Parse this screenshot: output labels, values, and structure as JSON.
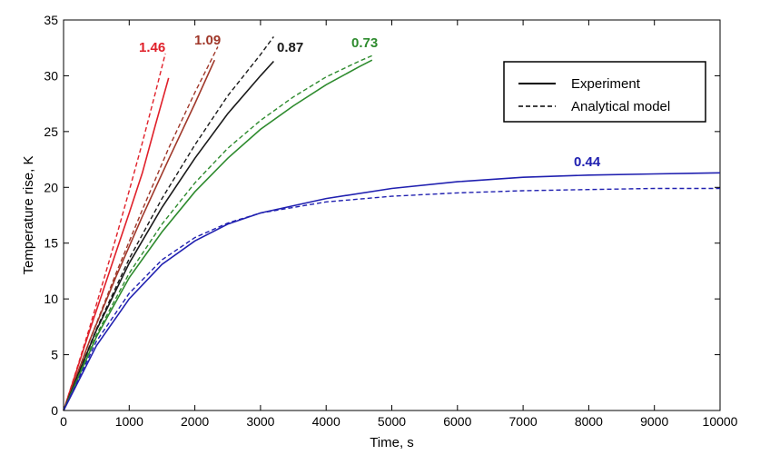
{
  "chart_data": {
    "type": "line",
    "xlabel": "Time, s",
    "ylabel": "Temperature rise, K",
    "xlim": [
      0,
      10000
    ],
    "ylim": [
      0,
      35
    ],
    "xticks": [
      0,
      1000,
      2000,
      3000,
      4000,
      5000,
      6000,
      7000,
      8000,
      9000,
      10000
    ],
    "yticks": [
      0,
      5,
      10,
      15,
      20,
      25,
      30,
      35
    ],
    "grid": false,
    "legend": {
      "placement": "top-right",
      "entries": [
        {
          "label": "Experiment",
          "style": "solid"
        },
        {
          "label": "Analytical model",
          "style": "dashed"
        }
      ]
    },
    "series": [
      {
        "label": "1.46",
        "color": "#e0202a",
        "experiment": {
          "x": [
            0,
            200,
            400,
            600,
            800,
            1000,
            1200,
            1400,
            1600
          ],
          "y": [
            0,
            3.6,
            7.2,
            10.7,
            14.2,
            17.7,
            21.3,
            25.6,
            29.8
          ]
        },
        "model": {
          "x": [
            0,
            200,
            400,
            600,
            800,
            1000,
            1200,
            1400,
            1550
          ],
          "y": [
            0,
            3.7,
            7.5,
            11.5,
            15.5,
            19.7,
            24.0,
            28.5,
            32.0
          ]
        }
      },
      {
        "label": "1.09",
        "color": "#a0382a",
        "experiment": {
          "x": [
            0,
            400,
            800,
            1200,
            1600,
            2000,
            2300
          ],
          "y": [
            0,
            6.3,
            12.0,
            17.4,
            22.5,
            27.5,
            31.4
          ]
        },
        "model": {
          "x": [
            0,
            400,
            800,
            1200,
            1600,
            2000,
            2350
          ],
          "y": [
            0,
            6.3,
            12.3,
            18.0,
            23.5,
            28.5,
            32.6
          ]
        }
      },
      {
        "label": "0.87",
        "color": "#1a1a1a",
        "experiment": {
          "x": [
            0,
            500,
            1000,
            1500,
            2000,
            2500,
            3000,
            3200
          ],
          "y": [
            0,
            7.2,
            13.2,
            18.2,
            22.6,
            26.6,
            30.0,
            31.3
          ]
        },
        "model": {
          "x": [
            0,
            500,
            1000,
            1500,
            2000,
            2500,
            3000,
            3200
          ],
          "y": [
            0,
            7.3,
            13.6,
            19.0,
            23.8,
            28.2,
            31.9,
            33.5
          ]
        }
      },
      {
        "label": "0.73",
        "color": "#2e8b2e",
        "experiment": {
          "x": [
            0,
            500,
            1000,
            1500,
            2000,
            2500,
            3000,
            3500,
            4000,
            4500,
            4700
          ],
          "y": [
            0,
            6.6,
            11.9,
            16.0,
            19.6,
            22.6,
            25.2,
            27.3,
            29.2,
            30.8,
            31.4
          ]
        },
        "model": {
          "x": [
            0,
            500,
            1000,
            1500,
            2000,
            2500,
            3000,
            3500,
            4000,
            4500,
            4700
          ],
          "y": [
            0,
            6.8,
            12.3,
            16.7,
            20.4,
            23.5,
            26.0,
            28.1,
            29.9,
            31.3,
            31.8
          ]
        }
      },
      {
        "label": "0.44",
        "color": "#2020b0",
        "experiment": {
          "x": [
            0,
            500,
            1000,
            1500,
            2000,
            2500,
            3000,
            4000,
            5000,
            6000,
            7000,
            8000,
            9000,
            10000
          ],
          "y": [
            0,
            5.8,
            10.0,
            13.1,
            15.2,
            16.7,
            17.7,
            19.0,
            19.9,
            20.5,
            20.9,
            21.1,
            21.2,
            21.3
          ]
        },
        "model": {
          "x": [
            0,
            500,
            1000,
            1500,
            2000,
            2500,
            3000,
            4000,
            5000,
            6000,
            7000,
            8000,
            9000,
            10000
          ],
          "y": [
            0,
            6.2,
            10.5,
            13.5,
            15.5,
            16.8,
            17.7,
            18.7,
            19.2,
            19.5,
            19.7,
            19.8,
            19.9,
            19.9
          ]
        }
      }
    ]
  }
}
